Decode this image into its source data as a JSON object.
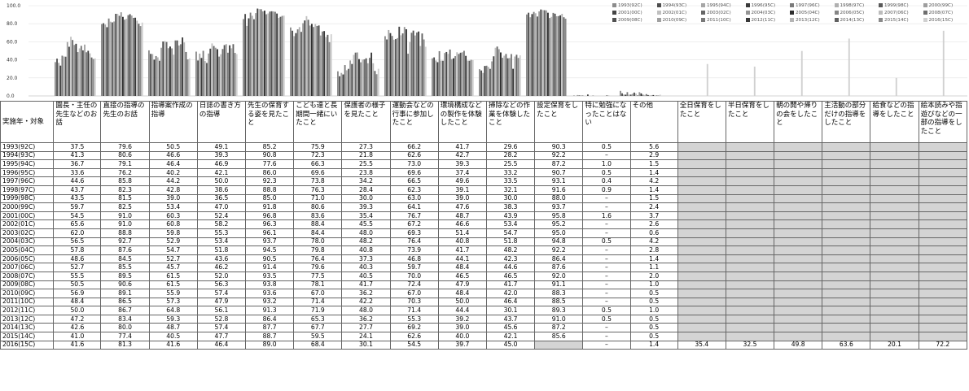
{
  "chart_data": {
    "type": "bar",
    "y_ticks": [
      "100.0",
      "80.0",
      "60.0",
      "40.0",
      "20.0",
      "0.0"
    ],
    "ylim": [
      0,
      100
    ],
    "grid": true,
    "legend_position": "top-right",
    "series_colors": [
      "#8c8c8c",
      "#4d4d4d",
      "#a6a6a6",
      "#3a3a3a",
      "#7a7a7a",
      "#b0b0b0",
      "#595959",
      "#9e9e9e",
      "#444444",
      "#c0c0c0",
      "#666666",
      "#959595",
      "#2f2f2f",
      "#858585",
      "#bcbcbc",
      "#6e6e6e",
      "#505050",
      "#a0a0a0",
      "#787878",
      "#383838",
      "#b5b5b5",
      "#606060",
      "#8a8a8a",
      "#d0d0d0"
    ]
  },
  "legend": [
    "1993(92C)",
    "1994(93C)",
    "1995(94C)",
    "1996(95C)",
    "1997(96C)",
    "1998(97C)",
    "1999(98C)",
    "2000(99C)",
    "2001(00C)",
    "2002(01C)",
    "2003(02C)",
    "2004(03C)",
    "2005(04C)",
    "2006(05C)",
    "2007(06C)",
    "2008(07C)",
    "2009(08C)",
    "2010(09C)",
    "2011(10C)",
    "2012(11C)",
    "2013(12C)",
    "2014(13C)",
    "2015(14C)",
    "2016(15C)"
  ],
  "table": {
    "headers": [
      "実施年・対象",
      "園長・主任の先生などのお話",
      "直接の指導の先生のお話",
      "指導案作成の指導",
      "日誌の書き方の指導",
      "先生の保育する姿を見たこと",
      "こども達と長期間一緒にいたこと",
      "保護者の様子を見たこと",
      "運動会などの行事に参加したこと",
      "環境構成などの製作を体験したこと",
      "掃除などの作業を体験したこと",
      "設定保育をしたこと",
      "特に勉強になったことはない",
      "その他",
      "全日保育をしたこと",
      "半日保育をしたこと",
      "朝の開や帰りの会をしたこと",
      "主活動の部分だけの指導をしたこと",
      "給食などの指導をしたこと",
      "絵本読みや指遊びなどの一部の指導をしたこと"
    ],
    "rows": [
      [
        "1993(92C)",
        "37.5",
        "79.6",
        "50.5",
        "49.1",
        "85.2",
        "75.9",
        "27.3",
        "66.2",
        "41.7",
        "29.6",
        "90.3",
        "0.5",
        "5.6",
        "",
        "",
        "",
        "",
        "",
        ""
      ],
      [
        "1994(93C)",
        "41.3",
        "80.6",
        "46.6",
        "39.3",
        "90.8",
        "72.3",
        "21.8",
        "62.6",
        "42.7",
        "28.2",
        "92.2",
        "–",
        "2.9",
        "",
        "",
        "",
        "",
        "",
        ""
      ],
      [
        "1995(94C)",
        "36.7",
        "79.1",
        "46.4",
        "46.9",
        "77.6",
        "66.3",
        "25.5",
        "73.0",
        "39.3",
        "25.5",
        "87.2",
        "1.0",
        "1.5",
        "",
        "",
        "",
        "",
        "",
        ""
      ],
      [
        "1996(95C)",
        "33.6",
        "76.2",
        "40.2",
        "42.1",
        "86.0",
        "69.6",
        "23.8",
        "69.6",
        "37.4",
        "33.2",
        "90.7",
        "0.5",
        "1.4",
        "",
        "",
        "",
        "",
        "",
        ""
      ],
      [
        "1997(96C)",
        "44.6",
        "85.8",
        "44.2",
        "50.0",
        "92.3",
        "73.8",
        "34.2",
        "66.5",
        "49.6",
        "33.5",
        "93.1",
        "0.4",
        "4.2",
        "",
        "",
        "",
        "",
        "",
        ""
      ],
      [
        "1998(97C)",
        "43.7",
        "82.3",
        "42.8",
        "38.6",
        "88.8",
        "76.3",
        "28.4",
        "62.3",
        "39.1",
        "32.1",
        "91.6",
        "0.9",
        "1.4",
        "",
        "",
        "",
        "",
        "",
        ""
      ],
      [
        "1999(98C)",
        "43.5",
        "81.5",
        "39.0",
        "36.5",
        "85.0",
        "71.0",
        "30.0",
        "63.0",
        "39.0",
        "30.0",
        "88.0",
        "–",
        "1.5",
        "",
        "",
        "",
        "",
        "",
        ""
      ],
      [
        "2000(99C)",
        "59.7",
        "82.5",
        "53.4",
        "47.0",
        "91.8",
        "80.6",
        "39.3",
        "64.1",
        "47.6",
        "38.3",
        "93.7",
        "–",
        "2.4",
        "",
        "",
        "",
        "",
        "",
        ""
      ],
      [
        "2001(00C)",
        "54.5",
        "91.0",
        "60.3",
        "52.4",
        "96.8",
        "83.6",
        "35.4",
        "76.7",
        "48.7",
        "43.9",
        "95.8",
        "1.6",
        "3.7",
        "",
        "",
        "",
        "",
        "",
        ""
      ],
      [
        "2002(01C)",
        "65.6",
        "91.0",
        "60.8",
        "58.2",
        "96.3",
        "88.4",
        "45.5",
        "67.2",
        "46.6",
        "53.4",
        "95.2",
        "–",
        "2.6",
        "",
        "",
        "",
        "",
        "",
        ""
      ],
      [
        "2003(02C)",
        "62.0",
        "88.8",
        "59.8",
        "55.3",
        "96.1",
        "84.4",
        "48.0",
        "69.3",
        "51.4",
        "54.7",
        "95.0",
        "–",
        "0.6",
        "",
        "",
        "",
        "",
        "",
        ""
      ],
      [
        "2004(03C)",
        "56.5",
        "92.7",
        "52.9",
        "53.4",
        "93.7",
        "78.0",
        "48.2",
        "76.4",
        "40.8",
        "51.8",
        "94.8",
        "0.5",
        "4.2",
        "",
        "",
        "",
        "",
        "",
        ""
      ],
      [
        "2005(04C)",
        "57.8",
        "87.6",
        "54.7",
        "51.8",
        "94.5",
        "79.8",
        "40.8",
        "73.9",
        "41.7",
        "48.2",
        "92.2",
        "–",
        "2.8",
        "",
        "",
        "",
        "",
        "",
        ""
      ],
      [
        "2006(05C)",
        "48.6",
        "84.5",
        "52.7",
        "43.6",
        "90.5",
        "76.4",
        "37.3",
        "46.8",
        "44.1",
        "42.3",
        "86.4",
        "–",
        "1.4",
        "",
        "",
        "",
        "",
        "",
        ""
      ],
      [
        "2007(06C)",
        "52.7",
        "85.5",
        "45.7",
        "46.2",
        "91.4",
        "79.6",
        "40.3",
        "59.7",
        "48.4",
        "44.6",
        "87.6",
        "–",
        "1.1",
        "",
        "",
        "",
        "",
        "",
        ""
      ],
      [
        "2008(07C)",
        "55.5",
        "89.5",
        "61.5",
        "52.0",
        "93.5",
        "77.5",
        "40.5",
        "70.0",
        "46.5",
        "46.5",
        "92.0",
        "–",
        "2.0",
        "",
        "",
        "",
        "",
        "",
        ""
      ],
      [
        "2009(08C)",
        "50.5",
        "90.6",
        "61.5",
        "56.3",
        "93.8",
        "78.1",
        "41.7",
        "72.4",
        "47.9",
        "41.7",
        "91.1",
        "–",
        "1.0",
        "",
        "",
        "",
        "",
        "",
        ""
      ],
      [
        "2010(09C)",
        "56.9",
        "89.1",
        "55.9",
        "57.4",
        "93.6",
        "67.0",
        "36.2",
        "67.0",
        "48.4",
        "42.0",
        "88.3",
        "–",
        "0.5",
        "",
        "",
        "",
        "",
        "",
        ""
      ],
      [
        "2011(10C)",
        "48.4",
        "86.5",
        "57.3",
        "47.9",
        "93.2",
        "71.4",
        "42.2",
        "70.3",
        "50.0",
        "46.4",
        "88.5",
        "–",
        "0.5",
        "",
        "",
        "",
        "",
        "",
        ""
      ],
      [
        "2012(11C)",
        "50.0",
        "86.7",
        "64.8",
        "56.1",
        "91.3",
        "71.9",
        "48.0",
        "71.4",
        "44.4",
        "30.1",
        "89.3",
        "0.5",
        "1.0",
        "",
        "",
        "",
        "",
        "",
        ""
      ],
      [
        "2013(12C)",
        "47.2",
        "83.4",
        "59.3",
        "52.8",
        "86.4",
        "65.3",
        "36.2",
        "55.3",
        "39.2",
        "43.7",
        "91.0",
        "0.5",
        "0.5",
        "",
        "",
        "",
        "",
        "",
        ""
      ],
      [
        "2014(13C)",
        "42.6",
        "80.0",
        "48.7",
        "57.4",
        "87.7",
        "67.7",
        "27.7",
        "69.2",
        "39.0",
        "45.6",
        "87.2",
        "–",
        "0.5",
        "",
        "",
        "",
        "",
        "",
        ""
      ],
      [
        "2015(14C)",
        "41.0",
        "77.4",
        "40.5",
        "47.7",
        "88.7",
        "59.5",
        "24.1",
        "62.6",
        "40.0",
        "42.1",
        "85.6",
        "–",
        "0.5",
        "",
        "",
        "",
        "",
        "",
        ""
      ],
      [
        "2016(15C)",
        "41.6",
        "81.3",
        "41.6",
        "46.4",
        "89.0",
        "68.4",
        "30.1",
        "54.5",
        "39.7",
        "45.0",
        "",
        "–",
        "1.4",
        "35.4",
        "32.5",
        "49.8",
        "63.6",
        "20.1",
        "72.2"
      ]
    ]
  }
}
